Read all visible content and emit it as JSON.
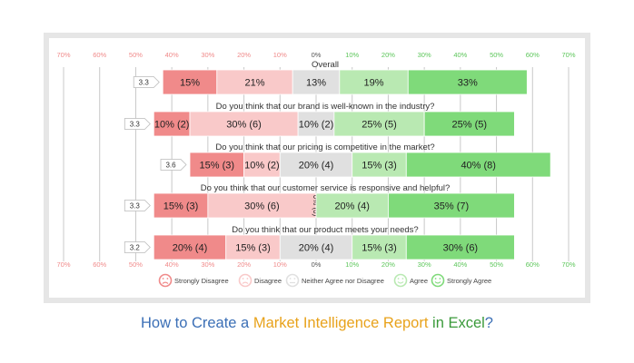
{
  "chart_data": {
    "type": "bar",
    "orientation": "horizontal",
    "stacking": "diverging",
    "axis_tick_labels": [
      "70%",
      "60%",
      "50%",
      "40%",
      "30%",
      "20%",
      "10%",
      "0%",
      "10%",
      "20%",
      "30%",
      "40%",
      "50%",
      "60%",
      "70%"
    ],
    "xlim_percent": [
      -70,
      70
    ],
    "categories": [
      "Overall",
      "Do you think that our brand is well-known in the industry?",
      "Do you think that our pricing is competitive in the market?",
      "Do you think that our customer service is responsive and helpful?",
      "Do you think that our product meets your needs?"
    ],
    "scores": [
      "3.3",
      "3.3",
      "3.6",
      "3.3",
      "3.2"
    ],
    "series": [
      {
        "name": "Strongly Disagree",
        "color": "#f08a8a",
        "values": [
          15,
          10,
          15,
          15,
          20
        ],
        "labels": [
          "15%",
          "10% (2)",
          "15% (3)",
          "15% (3)",
          "20% (4)"
        ]
      },
      {
        "name": "Disagree",
        "color": "#f9c9c9",
        "values": [
          21,
          30,
          10,
          30,
          15
        ],
        "labels": [
          "21%",
          "30% (6)",
          "10% (2)",
          "30% (6)",
          "15% (3)"
        ]
      },
      {
        "name": "Neither Agree nor Disagree",
        "color": "#e0e0e0",
        "values": [
          13,
          10,
          20,
          0,
          20
        ],
        "labels": [
          "13%",
          "10% (2)",
          "20% (4)",
          "0% (0)",
          "20% (4)"
        ]
      },
      {
        "name": "Agree",
        "color": "#b9e9b2",
        "values": [
          19,
          25,
          15,
          20,
          15
        ],
        "labels": [
          "19%",
          "25% (5)",
          "15% (3)",
          "20% (4)",
          "15% (3)"
        ]
      },
      {
        "name": "Strongly Agree",
        "color": "#7fda7a",
        "values": [
          33,
          25,
          40,
          35,
          30
        ],
        "labels": [
          "33%",
          "25% (5)",
          "40% (8)",
          "35% (7)",
          "30% (6)"
        ]
      }
    ],
    "legend": "bottom"
  },
  "caption": {
    "part1": "How to Create a ",
    "part2": "Market Intelligence Report",
    "part3": " in Excel",
    "part4": "?"
  }
}
